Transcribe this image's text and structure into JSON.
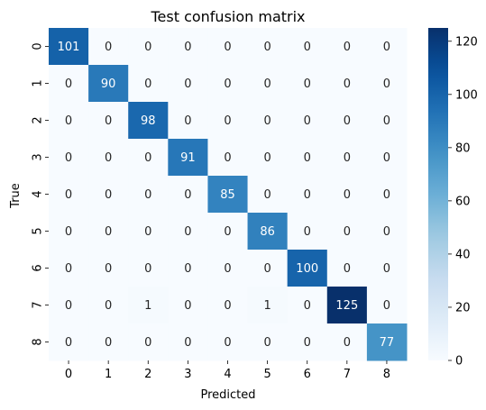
{
  "chart_data": {
    "type": "heatmap",
    "title": "Test confusion matrix",
    "xlabel": "Predicted",
    "ylabel": "True",
    "x_categories": [
      "0",
      "1",
      "2",
      "3",
      "4",
      "5",
      "6",
      "7",
      "8"
    ],
    "y_categories": [
      "0",
      "1",
      "2",
      "3",
      "4",
      "5",
      "6",
      "7",
      "8"
    ],
    "values": [
      [
        101,
        0,
        0,
        0,
        0,
        0,
        0,
        0,
        0
      ],
      [
        0,
        90,
        0,
        0,
        0,
        0,
        0,
        0,
        0
      ],
      [
        0,
        0,
        98,
        0,
        0,
        0,
        0,
        0,
        0
      ],
      [
        0,
        0,
        0,
        91,
        0,
        0,
        0,
        0,
        0
      ],
      [
        0,
        0,
        0,
        0,
        85,
        0,
        0,
        0,
        0
      ],
      [
        0,
        0,
        0,
        0,
        0,
        86,
        0,
        0,
        0
      ],
      [
        0,
        0,
        0,
        0,
        0,
        0,
        100,
        0,
        0
      ],
      [
        0,
        0,
        1,
        0,
        0,
        1,
        0,
        125,
        0
      ],
      [
        0,
        0,
        0,
        0,
        0,
        0,
        0,
        0,
        77
      ]
    ],
    "colorbar": {
      "range": [
        0,
        125
      ],
      "ticks": [
        0,
        20,
        40,
        60,
        80,
        100,
        120
      ],
      "colormap": "Blues"
    },
    "annotations": true
  }
}
